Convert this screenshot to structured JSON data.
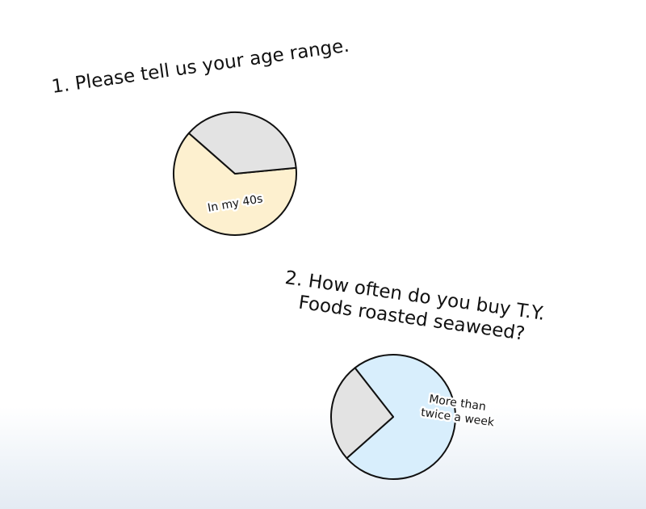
{
  "questions": {
    "q1": "1. Please tell us your age range.",
    "q2_line1": "2. How often do you buy T.Y.",
    "q2_line2": "Foods roasted seaweed?"
  },
  "chart_data": [
    {
      "type": "pie",
      "title": "1. Please tell us your age range.",
      "slices": [
        {
          "label": "In my 40s",
          "value": 63,
          "color": "#fdf0cf"
        },
        {
          "label": "",
          "value": 37,
          "color": "#e3e3e3"
        }
      ]
    },
    {
      "type": "pie",
      "title": "2. How often do you buy T.Y. Foods roasted seaweed?",
      "slices": [
        {
          "label": "More than twice a week",
          "label_lines": [
            "More than",
            "twice a week"
          ],
          "value": 74,
          "color": "#d8eefc"
        },
        {
          "label": "",
          "value": 26,
          "color": "#e3e3e3"
        }
      ]
    }
  ]
}
